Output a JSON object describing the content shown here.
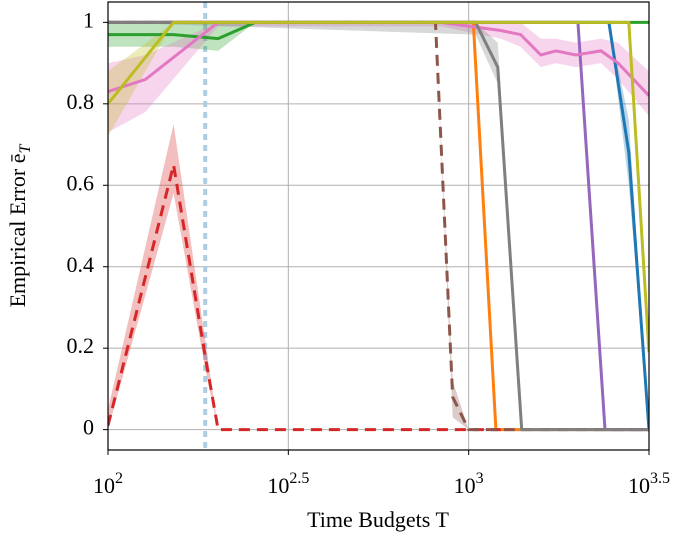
{
  "chart_data": {
    "type": "line",
    "xlabel": "Time Budgets T",
    "ylabel": "Empirical Error ē_T",
    "xscale": "log",
    "xlim": [
      100,
      3162.28
    ],
    "ylim": [
      -0.05,
      1.05
    ],
    "xticks": [
      {
        "value": 100,
        "label": "10^2"
      },
      {
        "value": 316.23,
        "label": "10^2.5"
      },
      {
        "value": 1000,
        "label": "10^3"
      },
      {
        "value": 3162.28,
        "label": "10^3.5"
      }
    ],
    "yticks": [
      0,
      0.2,
      0.4,
      0.6,
      0.8,
      1
    ],
    "grid": true,
    "reference_lines": [
      {
        "x": 186,
        "color": "#aecde3",
        "style": "dotted"
      }
    ],
    "series": [
      {
        "color": "#1f77b4",
        "dashed": false,
        "x": [
          100,
          2448,
          2780,
          3162
        ],
        "values": [
          1,
          1,
          0.68,
          0
        ],
        "lower": [
          1,
          1,
          0.6,
          0
        ],
        "upper": [
          1,
          1,
          0.76,
          0
        ]
      },
      {
        "color": "#ff7f0e",
        "dashed": false,
        "x": [
          100,
          1030,
          1190,
          3162
        ],
        "values": [
          1,
          1,
          0,
          0
        ]
      },
      {
        "color": "#2ca02c",
        "dashed": false,
        "x": [
          100,
          152,
          202,
          256,
          3162
        ],
        "values": [
          0.97,
          0.97,
          0.96,
          1,
          1
        ],
        "lower": [
          0.94,
          0.94,
          0.93,
          1,
          1
        ],
        "upper": [
          1,
          1,
          1,
          1,
          1
        ]
      },
      {
        "color": "#d62728",
        "dashed": true,
        "x": [
          100,
          152,
          186,
          202,
          1227
        ],
        "values": [
          0.01,
          0.65,
          0.18,
          0,
          0
        ],
        "lower": [
          0,
          0.58,
          0.15,
          0,
          0
        ],
        "upper": [
          0.05,
          0.75,
          0.22,
          0,
          0
        ]
      },
      {
        "color": "#9467bd",
        "dashed": false,
        "x": [
          100,
          2009,
          2388,
          3162
        ],
        "values": [
          1,
          1,
          0,
          0
        ]
      },
      {
        "color": "#8c564b",
        "dashed": true,
        "x": [
          100,
          809,
          903,
          1000,
          3162
        ],
        "values": [
          1,
          1,
          0.08,
          0,
          0
        ],
        "lower": [
          1,
          1,
          0.03,
          0,
          0
        ],
        "upper": [
          1,
          1,
          0.12,
          0,
          0
        ]
      },
      {
        "color": "#e377c2",
        "dashed": false,
        "x": [
          100,
          127,
          202,
          836,
          1227,
          1393,
          1585,
          1745,
          1983,
          2328,
          2596,
          3162
        ],
        "values": [
          0.83,
          0.86,
          1,
          1,
          0.98,
          0.97,
          0.92,
          0.93,
          0.92,
          0.93,
          0.9,
          0.82
        ],
        "lower": [
          0.73,
          0.78,
          0.99,
          0.99,
          0.96,
          0.94,
          0.89,
          0.9,
          0.89,
          0.9,
          0.86,
          0.77
        ],
        "upper": [
          0.9,
          0.92,
          1,
          1,
          1,
          1,
          0.96,
          0.96,
          0.95,
          0.96,
          0.95,
          0.88
        ]
      },
      {
        "color": "#7f7f7f",
        "dashed": false,
        "x": [
          100,
          1045,
          1204,
          1403,
          3162
        ],
        "values": [
          1,
          1,
          0.89,
          0,
          0
        ],
        "lower": [
          1,
          0.97,
          0.85,
          0,
          0
        ],
        "upper": [
          1,
          1,
          0.95,
          0,
          0
        ]
      },
      {
        "color": "#bcbd22",
        "dashed": false,
        "x": [
          100,
          152,
          2780,
          3162
        ],
        "values": [
          0.8,
          1,
          1,
          0.19
        ],
        "lower": [
          0.72,
          1,
          1,
          0.19
        ],
        "upper": [
          0.88,
          1,
          1,
          0.19
        ]
      }
    ]
  }
}
